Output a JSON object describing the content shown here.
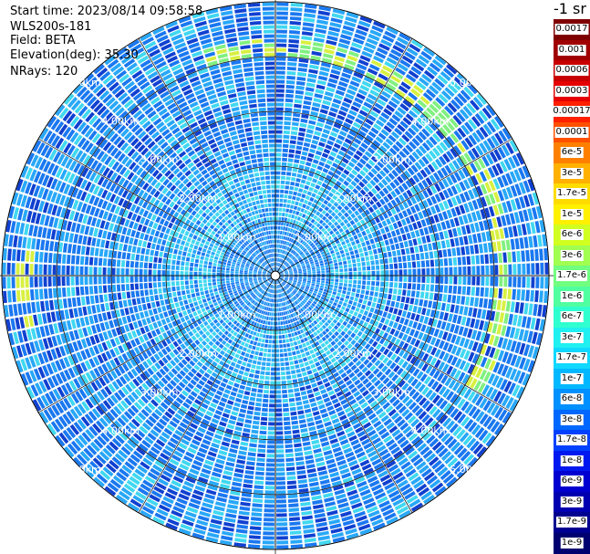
{
  "header": {
    "start_time": "Start time: 2023/08/14 09:58:58",
    "instrument": "WLS200s-181",
    "field": "Field: BETA",
    "elevation": "Elevation(deg): 35.30",
    "nrays": "NRays: 120"
  },
  "unit_label": "-1 sr",
  "range_rings": {
    "labels": [
      "1.00km",
      "2.00km",
      "3.00km",
      "4.00km",
      "5.00km"
    ],
    "radius_km": [
      1,
      2,
      3,
      4,
      5
    ]
  },
  "colorbar": {
    "labels": [
      "0.0017",
      "0.001",
      "0.0006",
      "0.0003",
      "0.00017",
      "0.0001",
      "6e-5",
      "3e-5",
      "1.7e-5",
      "1e-5",
      "6e-6",
      "3e-6",
      "1.7e-6",
      "1e-6",
      "6e-7",
      "3e-7",
      "1.7e-7",
      "1e-7",
      "6e-8",
      "3e-8",
      "1.7e-8",
      "1e-8",
      "6e-9",
      "3e-9",
      "1.7e-9",
      "1e-9"
    ],
    "colors": [
      "#7f0000",
      "#a00000",
      "#c80000",
      "#e60000",
      "#ff2000",
      "#ff5000",
      "#ff8000",
      "#ffb000",
      "#ffdc00",
      "#fff000",
      "#d0ff20",
      "#a0ff50",
      "#70ff80",
      "#50ffa0",
      "#30ffd0",
      "#20f0f0",
      "#10d8ff",
      "#00b8ff",
      "#0090ff",
      "#0068ff",
      "#0040ff",
      "#0018f0",
      "#0000d0",
      "#0000b0",
      "#000090",
      "#000070"
    ]
  },
  "field_colors": {
    "deep": "#1040d0",
    "mid": "#1a78f0",
    "light": "#28a8f8",
    "cyan": "#40d8f0",
    "yellow": "#d8f040",
    "green": "#80f080"
  }
}
